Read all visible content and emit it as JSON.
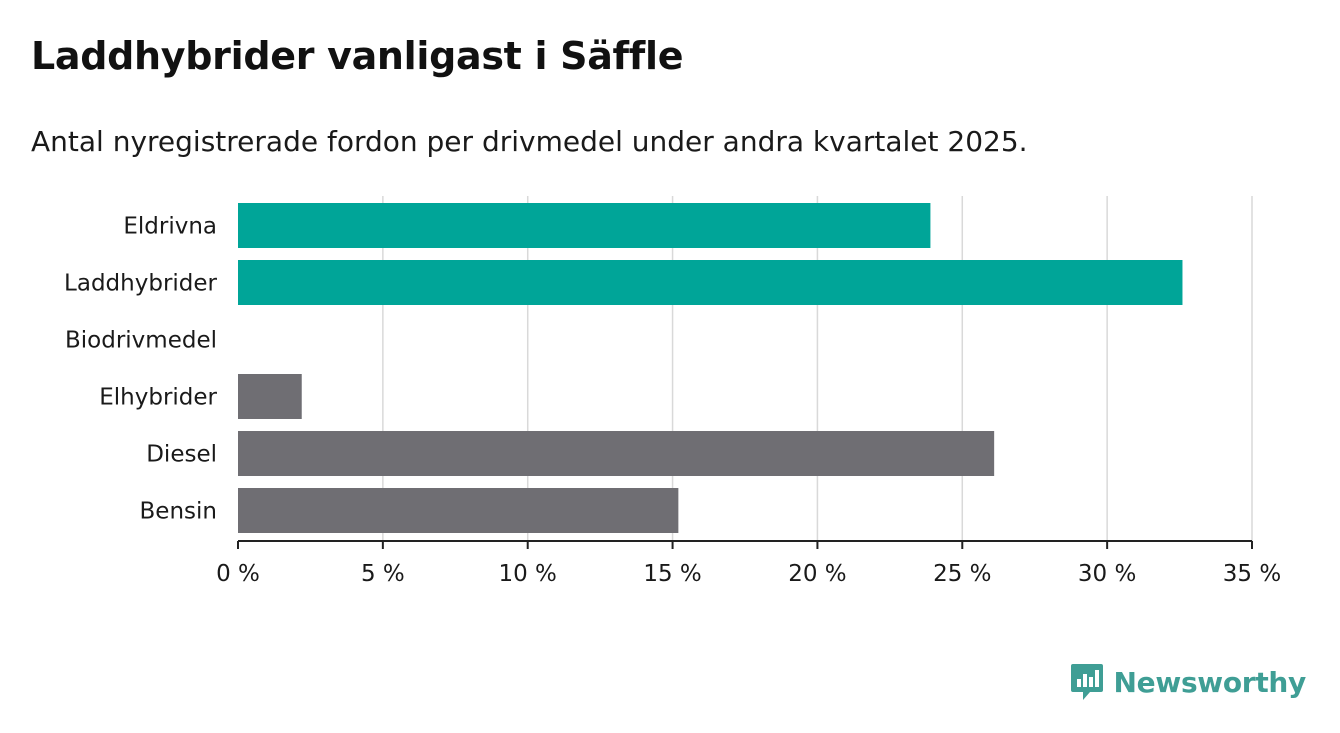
{
  "title": "Laddhybrider vanligast i Säffle",
  "subtitle": "Antal nyregistrerade fordon per drivmedel under andra kvartalet 2025.",
  "brand": "Newsworthy",
  "colors": {
    "highlight": "#00a598",
    "default": "#6f6e73",
    "grid": "#d9d9d9",
    "axis": "#222222",
    "brand": "#3f9e95"
  },
  "chart_data": {
    "type": "bar",
    "orientation": "horizontal",
    "title": "Laddhybrider vanligast i Säffle",
    "subtitle": "Antal nyregistrerade fordon per drivmedel under andra kvartalet 2025.",
    "categories": [
      "Eldrivna",
      "Laddhybrider",
      "Biodrivmedel",
      "Elhybrider",
      "Diesel",
      "Bensin"
    ],
    "values": [
      23.9,
      32.6,
      0,
      2.2,
      26.1,
      15.2
    ],
    "highlighted": [
      true,
      true,
      false,
      false,
      false,
      false
    ],
    "unit": "%",
    "xlim": [
      0,
      35
    ],
    "xticks": [
      0,
      5,
      10,
      15,
      20,
      25,
      30,
      35
    ],
    "xtick_labels": [
      "0 %",
      "5 %",
      "10 %",
      "15 %",
      "20 %",
      "25 %",
      "30 %",
      "35 %"
    ],
    "grid": true
  }
}
